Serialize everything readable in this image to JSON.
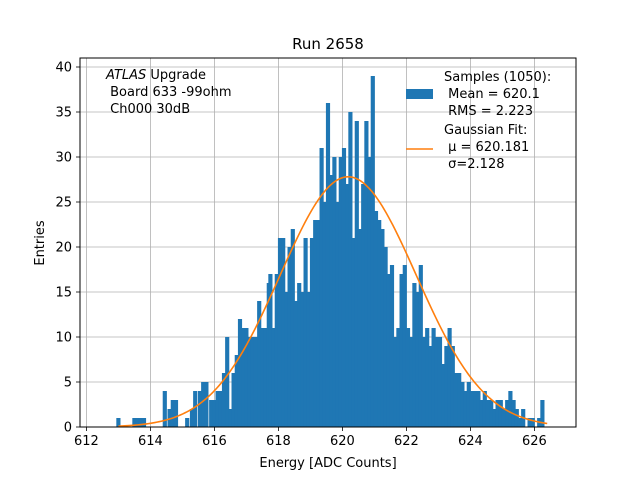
{
  "chart_data": {
    "type": "bar",
    "title": "Run 2658",
    "xlabel": "Energy [ADC Counts]",
    "ylabel": "Entries",
    "xlim": [
      611.8,
      627.3
    ],
    "ylim": [
      0,
      41
    ],
    "xticks": [
      612,
      614,
      616,
      618,
      620,
      622,
      624,
      626
    ],
    "yticks": [
      0,
      5,
      10,
      15,
      20,
      25,
      30,
      35,
      40
    ],
    "grid": true,
    "bin_width": 0.13,
    "annotation": {
      "lines": [
        {
          "italic": "ATLAS",
          "text": " Upgrade"
        },
        {
          "italic": "",
          "text": " Board 633 -99ohm"
        },
        {
          "italic": "",
          "text": " Ch000 30dB"
        }
      ]
    },
    "legend": {
      "placement": "top-right",
      "hist_label": [
        "Samples (1050):",
        " Mean = 620.1",
        " RMS = 2.223"
      ],
      "fit_label": [
        "Gaussian Fit:",
        " μ = 620.181",
        " σ=2.128"
      ]
    },
    "series": [
      {
        "kind": "histogram",
        "color": "#1f77b4",
        "bins": [
          [
            613.0,
            1
          ],
          [
            613.5,
            1
          ],
          [
            613.6,
            1
          ],
          [
            613.7,
            1
          ],
          [
            613.8,
            1
          ],
          [
            614.45,
            4
          ],
          [
            614.6,
            2
          ],
          [
            614.7,
            3
          ],
          [
            614.8,
            3
          ],
          [
            615.15,
            1
          ],
          [
            615.3,
            2
          ],
          [
            615.4,
            4
          ],
          [
            615.55,
            4
          ],
          [
            615.65,
            5
          ],
          [
            615.75,
            5
          ],
          [
            615.9,
            3
          ],
          [
            616.0,
            3
          ],
          [
            616.1,
            4
          ],
          [
            616.2,
            4
          ],
          [
            616.3,
            6
          ],
          [
            616.4,
            10
          ],
          [
            616.5,
            2
          ],
          [
            616.6,
            6
          ],
          [
            616.7,
            8
          ],
          [
            616.8,
            12
          ],
          [
            616.9,
            11
          ],
          [
            617.0,
            11
          ],
          [
            617.1,
            10
          ],
          [
            617.2,
            10
          ],
          [
            617.3,
            10
          ],
          [
            617.4,
            14
          ],
          [
            617.5,
            11
          ],
          [
            617.6,
            11
          ],
          [
            617.7,
            16
          ],
          [
            617.75,
            17
          ],
          [
            617.85,
            11
          ],
          [
            617.95,
            17
          ],
          [
            618.05,
            21
          ],
          [
            618.15,
            21
          ],
          [
            618.25,
            15
          ],
          [
            618.35,
            20
          ],
          [
            618.45,
            22
          ],
          [
            618.55,
            14
          ],
          [
            618.65,
            16
          ],
          [
            618.75,
            15
          ],
          [
            618.85,
            21
          ],
          [
            618.95,
            15
          ],
          [
            619.05,
            21
          ],
          [
            619.15,
            23
          ],
          [
            619.25,
            23
          ],
          [
            619.35,
            31
          ],
          [
            619.45,
            25
          ],
          [
            619.55,
            36
          ],
          [
            619.65,
            28
          ],
          [
            619.75,
            30
          ],
          [
            619.85,
            25
          ],
          [
            619.95,
            30
          ],
          [
            620.05,
            31
          ],
          [
            620.15,
            27
          ],
          [
            620.25,
            35
          ],
          [
            620.35,
            21
          ],
          [
            620.45,
            34
          ],
          [
            620.55,
            22
          ],
          [
            620.65,
            27
          ],
          [
            620.75,
            34
          ],
          [
            620.85,
            30
          ],
          [
            620.95,
            39
          ],
          [
            621.05,
            24
          ],
          [
            621.15,
            23
          ],
          [
            621.25,
            22
          ],
          [
            621.35,
            20
          ],
          [
            621.45,
            17
          ],
          [
            621.55,
            18
          ],
          [
            621.65,
            10
          ],
          [
            621.75,
            11
          ],
          [
            621.85,
            17
          ],
          [
            621.95,
            18
          ],
          [
            622.05,
            11
          ],
          [
            622.15,
            10
          ],
          [
            622.25,
            16
          ],
          [
            622.35,
            15
          ],
          [
            622.45,
            18
          ],
          [
            622.55,
            10
          ],
          [
            622.65,
            11
          ],
          [
            622.75,
            9
          ],
          [
            622.85,
            11
          ],
          [
            622.95,
            10
          ],
          [
            623.05,
            10
          ],
          [
            623.15,
            7
          ],
          [
            623.25,
            9
          ],
          [
            623.35,
            11
          ],
          [
            623.45,
            9
          ],
          [
            623.55,
            6
          ],
          [
            623.65,
            6
          ],
          [
            623.75,
            5
          ],
          [
            623.85,
            4
          ],
          [
            623.95,
            5
          ],
          [
            624.05,
            4
          ],
          [
            624.15,
            4
          ],
          [
            624.25,
            4
          ],
          [
            624.35,
            3
          ],
          [
            624.45,
            4
          ],
          [
            624.55,
            3
          ],
          [
            624.65,
            3
          ],
          [
            624.75,
            2
          ],
          [
            624.85,
            3
          ],
          [
            624.95,
            3
          ],
          [
            625.05,
            2
          ],
          [
            625.15,
            3
          ],
          [
            625.25,
            4
          ],
          [
            625.35,
            3
          ],
          [
            625.45,
            2
          ],
          [
            625.55,
            1
          ],
          [
            625.65,
            2
          ],
          [
            625.85,
            1
          ],
          [
            625.95,
            1
          ],
          [
            626.15,
            1
          ],
          [
            626.25,
            3
          ]
        ]
      },
      {
        "kind": "gaussian_fit",
        "color": "#ff7f0e",
        "mu": 620.181,
        "sigma": 2.128,
        "amplitude": 27.8,
        "x_range": [
          613.0,
          626.4
        ]
      }
    ]
  }
}
